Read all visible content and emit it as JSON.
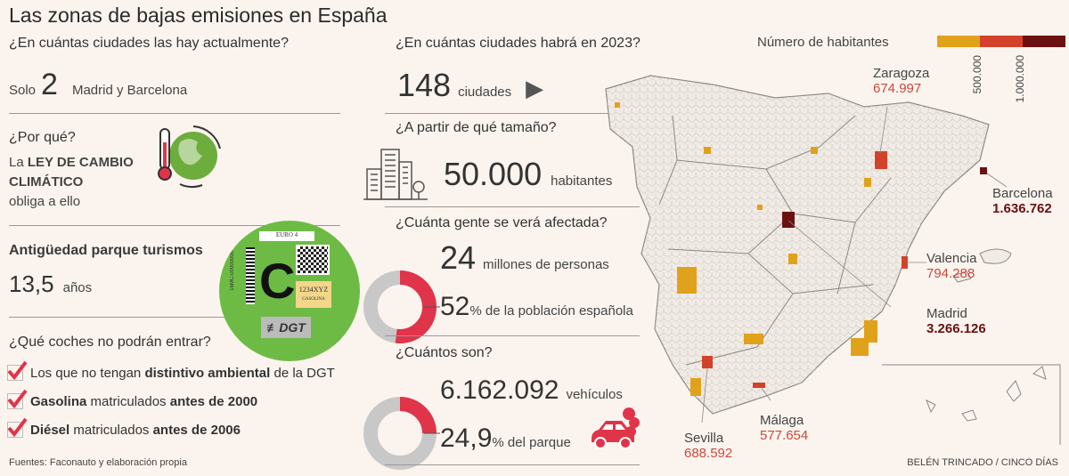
{
  "title": "Las zonas de bajas emisiones en España",
  "left": {
    "q1": "¿En cuántas ciudades las hay actualmente?",
    "q1_prefix": "Solo",
    "q1_number": "2",
    "q1_detail": "Madrid y Barcelona",
    "q2": "¿Por qué?",
    "q2_la": "La",
    "q2_law_1": "LEY DE CAMBIO",
    "q2_law_2": "CLIMÁTICO",
    "q2_tail": "obliga a ello",
    "q3": "Antigüedad parque turismos",
    "q3_number": "13,5",
    "q3_unit": "años",
    "q4": "¿Qué coches no podrán entrar?",
    "checks": [
      {
        "pre": "Los que no tengan ",
        "bold": "distintivo ambiental",
        "post": " de la DGT",
        "bold2": ""
      },
      {
        "pre": "",
        "bold": "Gasolina",
        "post": " matriculados ",
        "bold2": "antes de 2000"
      },
      {
        "pre": "",
        "bold": "Diésel",
        "post": " matriculados ",
        "bold2": "antes de 2006"
      }
    ],
    "sources": "Fuentes: Faconauto y elaboración propia"
  },
  "sticker": {
    "euro": "EURO 4",
    "letter": "C",
    "plate": "1234XYZ",
    "fuel": "GASOLINA",
    "serial": "16MC-00000000",
    "brand": "DGT",
    "color": "#6dbb45"
  },
  "middle": {
    "q1": "¿En cuántas ciudades habrá en 2023?",
    "q1_number": "148",
    "q1_unit": "ciudades",
    "q2": "¿A partir de qué tamaño?",
    "q2_number": "50.000",
    "q2_unit": "habitantes",
    "q3": "¿Cuánta gente se verá afectada?",
    "q3_number": "24",
    "q3_unit": "millones de personas",
    "q3_pct": "52",
    "q3_pct_text": "% de la población española",
    "q3_pct_value": 52,
    "q4": "¿Cuántos son?",
    "q4_number": "6.162.092",
    "q4_unit": "vehículos",
    "q4_pct": "24,9",
    "q4_pct_text": "% del parque",
    "q4_pct_value": 24.9
  },
  "map": {
    "legend_title": "Número de habitantes",
    "legend_ticks": [
      "500.000",
      "1.000.000"
    ],
    "legend_colors": [
      "#e0a21b",
      "#d2422b",
      "#6b1010"
    ],
    "cities": [
      {
        "name": "Zaragoza",
        "value": "674.997"
      },
      {
        "name": "Barcelona",
        "value": "1.636.762"
      },
      {
        "name": "Valencia",
        "value": "794.288"
      },
      {
        "name": "Madrid",
        "value": "3.266.126"
      },
      {
        "name": "Málaga",
        "value": "577.654"
      },
      {
        "name": "Sevilla",
        "value": "688.592"
      }
    ],
    "credit": "BELÉN TRINCADO / CINCO DÍAS"
  },
  "colors": {
    "accent": "#e0344a",
    "grey": "#c8c8c8"
  }
}
